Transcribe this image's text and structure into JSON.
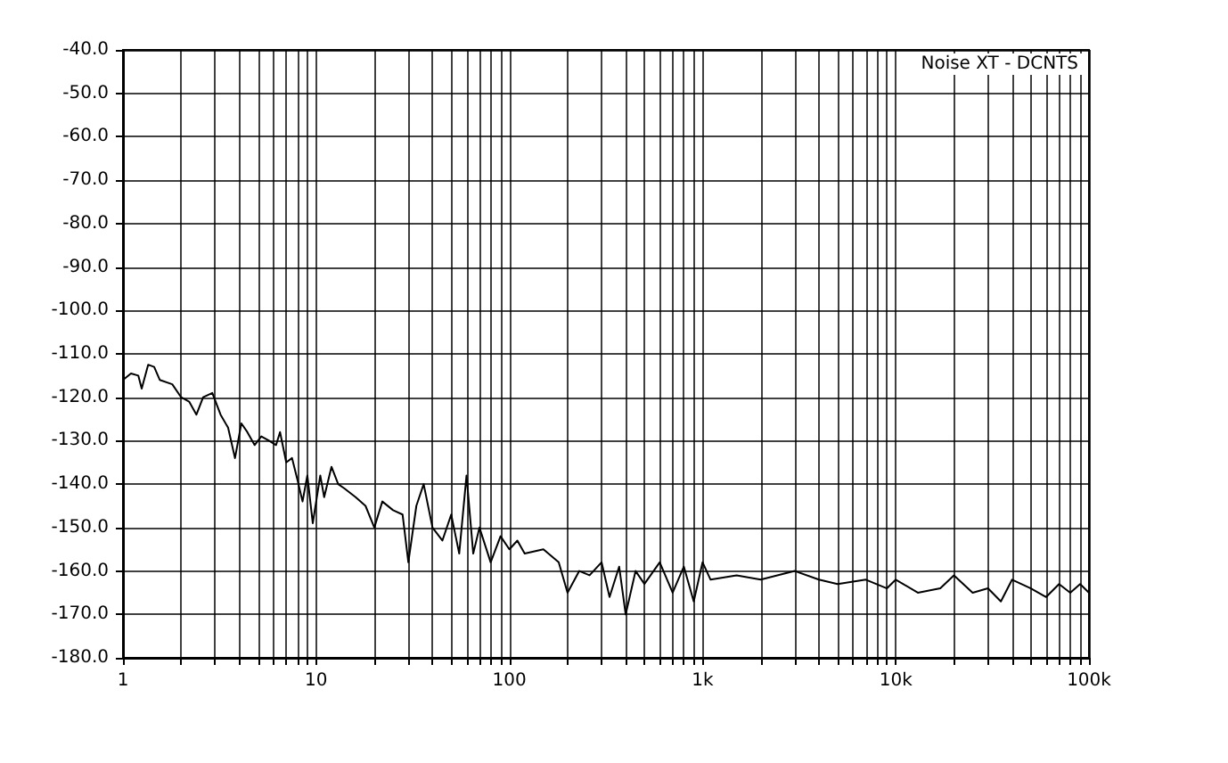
{
  "chart_data": {
    "type": "line",
    "log": "x",
    "grid": true,
    "marker": "none",
    "line_style": "solid",
    "annotations": [
      "Noise XT - DCNTS"
    ],
    "xlim": [
      1,
      100000
    ],
    "xticks": [
      {
        "value": 1,
        "label": "1"
      },
      {
        "value": 2,
        "label": null
      },
      {
        "value": 3,
        "label": null
      },
      {
        "value": 4,
        "label": null
      },
      {
        "value": 5,
        "label": null
      },
      {
        "value": 6,
        "label": null
      },
      {
        "value": 7,
        "label": null
      },
      {
        "value": 8,
        "label": null
      },
      {
        "value": 9,
        "label": null
      },
      {
        "value": 10,
        "label": "10"
      },
      {
        "value": 20,
        "label": null
      },
      {
        "value": 30,
        "label": null
      },
      {
        "value": 40,
        "label": null
      },
      {
        "value": 50,
        "label": null
      },
      {
        "value": 60,
        "label": null
      },
      {
        "value": 70,
        "label": null
      },
      {
        "value": 80,
        "label": null
      },
      {
        "value": 90,
        "label": null
      },
      {
        "value": 100,
        "label": "100"
      },
      {
        "value": 200,
        "label": null
      },
      {
        "value": 300,
        "label": null
      },
      {
        "value": 400,
        "label": null
      },
      {
        "value": 500,
        "label": null
      },
      {
        "value": 600,
        "label": null
      },
      {
        "value": 700,
        "label": null
      },
      {
        "value": 800,
        "label": null
      },
      {
        "value": 900,
        "label": null
      },
      {
        "value": 1000,
        "label": "1k"
      },
      {
        "value": 2000,
        "label": null
      },
      {
        "value": 3000,
        "label": null
      },
      {
        "value": 4000,
        "label": null
      },
      {
        "value": 5000,
        "label": null
      },
      {
        "value": 6000,
        "label": null
      },
      {
        "value": 7000,
        "label": null
      },
      {
        "value": 8000,
        "label": null
      },
      {
        "value": 9000,
        "label": null
      },
      {
        "value": 10000,
        "label": "10k"
      },
      {
        "value": 20000,
        "label": null
      },
      {
        "value": 30000,
        "label": null
      },
      {
        "value": 40000,
        "label": null
      },
      {
        "value": 50000,
        "label": null
      },
      {
        "value": 60000,
        "label": null
      },
      {
        "value": 70000,
        "label": null
      },
      {
        "value": 80000,
        "label": null
      },
      {
        "value": 90000,
        "label": null
      },
      {
        "value": 100000,
        "label": "100k"
      }
    ],
    "ylim": [
      -180,
      -40
    ],
    "yticks": [
      {
        "value": -180,
        "label": "-180.0"
      },
      {
        "value": -170,
        "label": "-170.0"
      },
      {
        "value": -160,
        "label": "-160.0"
      },
      {
        "value": -150,
        "label": "-150.0"
      },
      {
        "value": -140,
        "label": "-140.0"
      },
      {
        "value": -130,
        "label": "-130.0"
      },
      {
        "value": -120,
        "label": "-120.0"
      },
      {
        "value": -110,
        "label": "-110.0"
      },
      {
        "value": -100,
        "label": "-100.0"
      },
      {
        "value": -90,
        "label": "-90.0"
      },
      {
        "value": -80,
        "label": "-80.0"
      },
      {
        "value": -70,
        "label": "-70.0"
      },
      {
        "value": -60,
        "label": "-60.0"
      },
      {
        "value": -50,
        "label": "-50.0"
      },
      {
        "value": -40,
        "label": "-40.0"
      }
    ],
    "series": [
      {
        "color": "#000000",
        "x": [
          1,
          1.1,
          1.2,
          1.25,
          1.35,
          1.45,
          1.55,
          1.8,
          2,
          2.2,
          2.4,
          2.6,
          2.9,
          3.2,
          3.5,
          3.8,
          4.1,
          4.4,
          4.8,
          5.2,
          5.7,
          6.2,
          6.5,
          7,
          7.5,
          8,
          8.5,
          9,
          9.6,
          10.5,
          11,
          12,
          13,
          14,
          16,
          18,
          20,
          22,
          25,
          28,
          30,
          33,
          36,
          40,
          45,
          50,
          55,
          60,
          65,
          70,
          80,
          90,
          100,
          110,
          120,
          150,
          180,
          200,
          230,
          260,
          300,
          330,
          370,
          400,
          450,
          500,
          600,
          700,
          800,
          900,
          1000,
          1100,
          1500,
          2000,
          3000,
          4000,
          5000,
          7000,
          9000,
          10000,
          13000,
          17000,
          20000,
          25000,
          30000,
          35000,
          40000,
          50000,
          60000,
          70000,
          80000,
          90000,
          100000
        ],
        "values": [
          -116,
          -114.5,
          -115,
          -118,
          -112.5,
          -113,
          -116,
          -117,
          -120,
          -121,
          -124,
          -120,
          -119,
          -124,
          -127,
          -134,
          -126,
          -128,
          -131,
          -129,
          -130,
          -131,
          -128,
          -135,
          -134,
          -139,
          -144,
          -138,
          -149,
          -138,
          -143,
          -136,
          -140,
          -141,
          -143,
          -145,
          -150,
          -144,
          -146,
          -147,
          -158,
          -145,
          -140,
          -150,
          -153,
          -147,
          -156,
          -138,
          -156,
          -150,
          -158,
          -152,
          -155,
          -153,
          -156,
          -155,
          -158,
          -165,
          -160,
          -161,
          -158,
          -166,
          -159,
          -170,
          -160,
          -163,
          -158,
          -165,
          -159,
          -167,
          -158,
          -162,
          -161,
          -162,
          -160,
          -162,
          -163,
          -162,
          -164,
          -162,
          -165,
          -164,
          -161,
          -165,
          -164,
          -167,
          -162,
          -164,
          -166,
          -163,
          -165,
          -163,
          -165
        ]
      }
    ]
  }
}
